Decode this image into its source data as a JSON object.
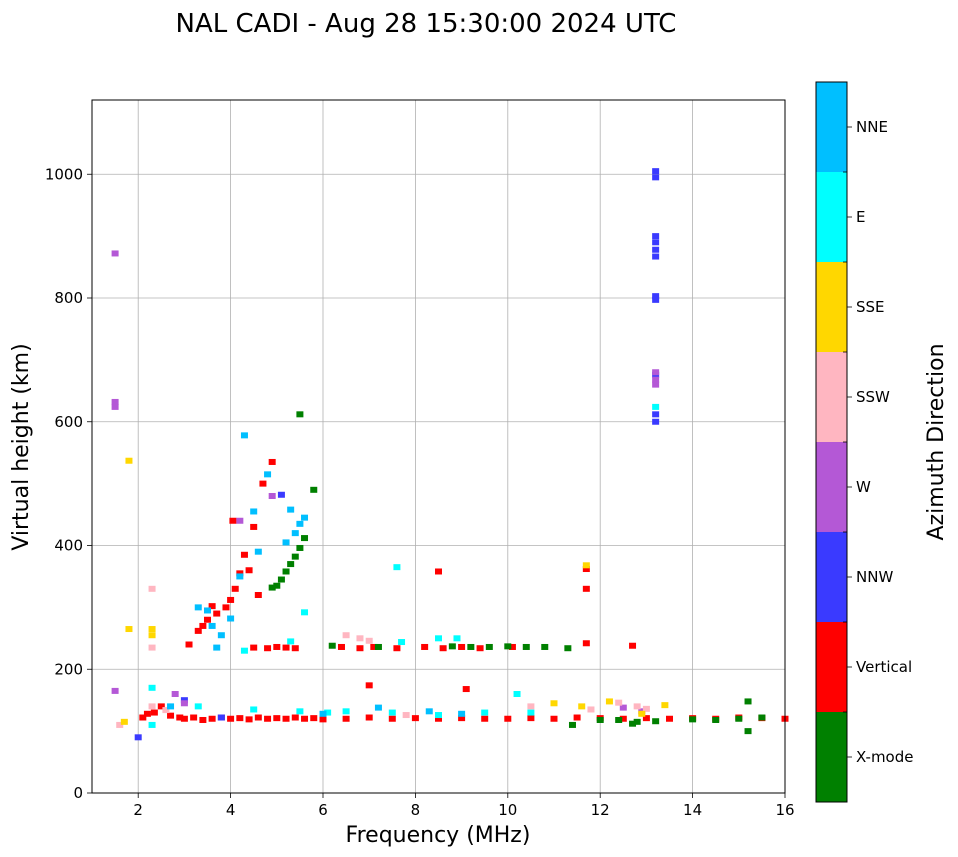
{
  "chart_data": {
    "type": "scatter",
    "title": "NAL CADI - Aug 28 15:30:00 2024 UTC",
    "xlabel": "Frequency (MHz)",
    "ylabel": "Virtual height (km)",
    "xlim": [
      1,
      16
    ],
    "ylim": [
      0,
      1120
    ],
    "xticks": [
      2,
      4,
      6,
      8,
      10,
      12,
      14,
      16
    ],
    "yticks": [
      0,
      200,
      400,
      600,
      800,
      1000
    ],
    "grid": true,
    "colorbar": {
      "label": "Azimuth Direction",
      "categories": [
        {
          "name": "X-mode",
          "color": "#008000"
        },
        {
          "name": "Vertical",
          "color": "#ff0000"
        },
        {
          "name": "NNW",
          "color": "#3a3aff"
        },
        {
          "name": "W",
          "color": "#b458d6"
        },
        {
          "name": "SSW",
          "color": "#ffb6c1"
        },
        {
          "name": "SSE",
          "color": "#ffd700"
        },
        {
          "name": "E",
          "color": "#00ffff"
        },
        {
          "name": "NNE",
          "color": "#00bfff"
        }
      ]
    },
    "series": [
      {
        "name": "Vertical",
        "points": [
          [
            2.1,
            122
          ],
          [
            2.2,
            128
          ],
          [
            2.35,
            130
          ],
          [
            2.5,
            140
          ],
          [
            2.7,
            125
          ],
          [
            2.9,
            122
          ],
          [
            3.0,
            120
          ],
          [
            3.2,
            122
          ],
          [
            3.4,
            118
          ],
          [
            3.6,
            120
          ],
          [
            3.8,
            122
          ],
          [
            4.0,
            120
          ],
          [
            4.2,
            121
          ],
          [
            4.4,
            119
          ],
          [
            4.6,
            122
          ],
          [
            4.8,
            120
          ],
          [
            5.0,
            121
          ],
          [
            5.2,
            120
          ],
          [
            5.4,
            122
          ],
          [
            5.6,
            120
          ],
          [
            5.8,
            121
          ],
          [
            6.0,
            119
          ],
          [
            6.5,
            120
          ],
          [
            7.0,
            122
          ],
          [
            7.5,
            120
          ],
          [
            8.0,
            121
          ],
          [
            8.5,
            120
          ],
          [
            9.0,
            121
          ],
          [
            9.5,
            120
          ],
          [
            10.0,
            120
          ],
          [
            10.5,
            121
          ],
          [
            11.0,
            120
          ],
          [
            11.5,
            122
          ],
          [
            12.0,
            121
          ],
          [
            12.5,
            120
          ],
          [
            13.0,
            121
          ],
          [
            13.5,
            120
          ],
          [
            14.0,
            121
          ],
          [
            14.5,
            120
          ],
          [
            15.0,
            122
          ],
          [
            15.5,
            121
          ],
          [
            16.0,
            120
          ],
          [
            3.1,
            240
          ],
          [
            3.3,
            262
          ],
          [
            3.5,
            280
          ],
          [
            3.7,
            290
          ],
          [
            3.9,
            300
          ],
          [
            4.0,
            312
          ],
          [
            4.1,
            330
          ],
          [
            3.6,
            302
          ],
          [
            3.4,
            270
          ],
          [
            4.2,
            355
          ],
          [
            4.3,
            385
          ],
          [
            4.4,
            360
          ],
          [
            4.5,
            430
          ],
          [
            4.7,
            500
          ],
          [
            4.9,
            535
          ],
          [
            4.05,
            440
          ],
          [
            4.6,
            320
          ],
          [
            4.5,
            235
          ],
          [
            4.8,
            234
          ],
          [
            5.0,
            236
          ],
          [
            5.2,
            235
          ],
          [
            5.4,
            234
          ],
          [
            6.4,
            236
          ],
          [
            6.8,
            234
          ],
          [
            7.1,
            236
          ],
          [
            7.6,
            234
          ],
          [
            8.2,
            236
          ],
          [
            8.6,
            234
          ],
          [
            9.0,
            236
          ],
          [
            9.4,
            234
          ],
          [
            10.1,
            236
          ],
          [
            12.7,
            238
          ],
          [
            11.7,
            330
          ],
          [
            11.7,
            362
          ],
          [
            8.5,
            358
          ],
          [
            9.1,
            168
          ],
          [
            7.0,
            174
          ],
          [
            11.7,
            242
          ]
        ]
      },
      {
        "name": "X-mode",
        "points": [
          [
            5.0,
            335
          ],
          [
            5.1,
            345
          ],
          [
            5.2,
            358
          ],
          [
            5.3,
            370
          ],
          [
            5.4,
            382
          ],
          [
            5.5,
            396
          ],
          [
            5.6,
            412
          ],
          [
            5.8,
            490
          ],
          [
            5.5,
            612
          ],
          [
            4.9,
            332
          ],
          [
            6.2,
            238
          ],
          [
            7.2,
            236
          ],
          [
            8.8,
            237
          ],
          [
            9.2,
            236
          ],
          [
            9.6,
            236
          ],
          [
            10.0,
            237
          ],
          [
            10.4,
            236
          ],
          [
            10.8,
            236
          ],
          [
            11.3,
            234
          ],
          [
            12.0,
            118
          ],
          [
            12.4,
            118
          ],
          [
            12.8,
            115
          ],
          [
            13.2,
            116
          ],
          [
            14.0,
            119
          ],
          [
            14.5,
            118
          ],
          [
            15.0,
            120
          ],
          [
            15.5,
            122
          ],
          [
            15.2,
            148
          ],
          [
            15.2,
            100
          ],
          [
            11.4,
            110
          ],
          [
            12.7,
            112
          ]
        ]
      },
      {
        "name": "NNW",
        "points": [
          [
            13.2,
            1005
          ],
          [
            13.2,
            995
          ],
          [
            13.2,
            900
          ],
          [
            13.2,
            890
          ],
          [
            13.2,
            878
          ],
          [
            13.2,
            867
          ],
          [
            13.2,
            803
          ],
          [
            13.2,
            797
          ],
          [
            13.2,
            612
          ],
          [
            13.2,
            600
          ],
          [
            13.2,
            676
          ],
          [
            5.1,
            482
          ],
          [
            2.0,
            90
          ],
          [
            3.0,
            150
          ],
          [
            3.8,
            122
          ]
        ]
      },
      {
        "name": "W",
        "points": [
          [
            13.2,
            668
          ],
          [
            13.2,
            660
          ],
          [
            13.2,
            680
          ],
          [
            1.5,
            632
          ],
          [
            1.5,
            624
          ],
          [
            1.5,
            872
          ],
          [
            1.5,
            165
          ],
          [
            2.8,
            160
          ],
          [
            3.0,
            145
          ],
          [
            12.5,
            138
          ],
          [
            12.9,
            132
          ],
          [
            4.2,
            440
          ],
          [
            4.9,
            480
          ]
        ]
      },
      {
        "name": "SSW",
        "points": [
          [
            2.3,
            140
          ],
          [
            2.3,
            235
          ],
          [
            2.6,
            134
          ],
          [
            6.5,
            255
          ],
          [
            6.8,
            250
          ],
          [
            7.0,
            246
          ],
          [
            12.4,
            146
          ],
          [
            12.8,
            140
          ],
          [
            13.0,
            136
          ],
          [
            1.6,
            110
          ],
          [
            2.3,
            330
          ],
          [
            7.8,
            126
          ],
          [
            10.5,
            140
          ],
          [
            11.8,
            135
          ]
        ]
      },
      {
        "name": "SSE",
        "points": [
          [
            2.3,
            255
          ],
          [
            2.3,
            265
          ],
          [
            1.7,
            115
          ],
          [
            1.8,
            265
          ],
          [
            1.8,
            537
          ],
          [
            11.0,
            145
          ],
          [
            11.6,
            140
          ],
          [
            12.2,
            148
          ],
          [
            13.4,
            142
          ],
          [
            11.7,
            368
          ],
          [
            12.9,
            128
          ]
        ]
      },
      {
        "name": "E",
        "points": [
          [
            2.3,
            170
          ],
          [
            2.3,
            110
          ],
          [
            3.3,
            140
          ],
          [
            4.5,
            135
          ],
          [
            5.5,
            132
          ],
          [
            6.5,
            132
          ],
          [
            7.5,
            130
          ],
          [
            8.5,
            126
          ],
          [
            9.5,
            130
          ],
          [
            10.5,
            130
          ],
          [
            8.5,
            250
          ],
          [
            8.9,
            250
          ],
          [
            7.6,
            365
          ],
          [
            7.7,
            244
          ],
          [
            13.2,
            624
          ],
          [
            4.3,
            230
          ],
          [
            5.3,
            245
          ],
          [
            5.6,
            292
          ],
          [
            10.2,
            160
          ],
          [
            6.1,
            130
          ]
        ]
      },
      {
        "name": "NNE",
        "points": [
          [
            3.6,
            270
          ],
          [
            3.8,
            255
          ],
          [
            4.0,
            282
          ],
          [
            3.5,
            295
          ],
          [
            4.3,
            578
          ],
          [
            4.5,
            455
          ],
          [
            4.8,
            515
          ],
          [
            5.2,
            405
          ],
          [
            5.4,
            420
          ],
          [
            5.5,
            435
          ],
          [
            5.6,
            445
          ],
          [
            6.0,
            128
          ],
          [
            7.2,
            138
          ],
          [
            8.3,
            132
          ],
          [
            9.0,
            128
          ],
          [
            4.2,
            350
          ],
          [
            4.6,
            390
          ],
          [
            3.3,
            300
          ],
          [
            3.7,
            235
          ],
          [
            2.7,
            140
          ],
          [
            5.3,
            458
          ]
        ]
      }
    ]
  }
}
